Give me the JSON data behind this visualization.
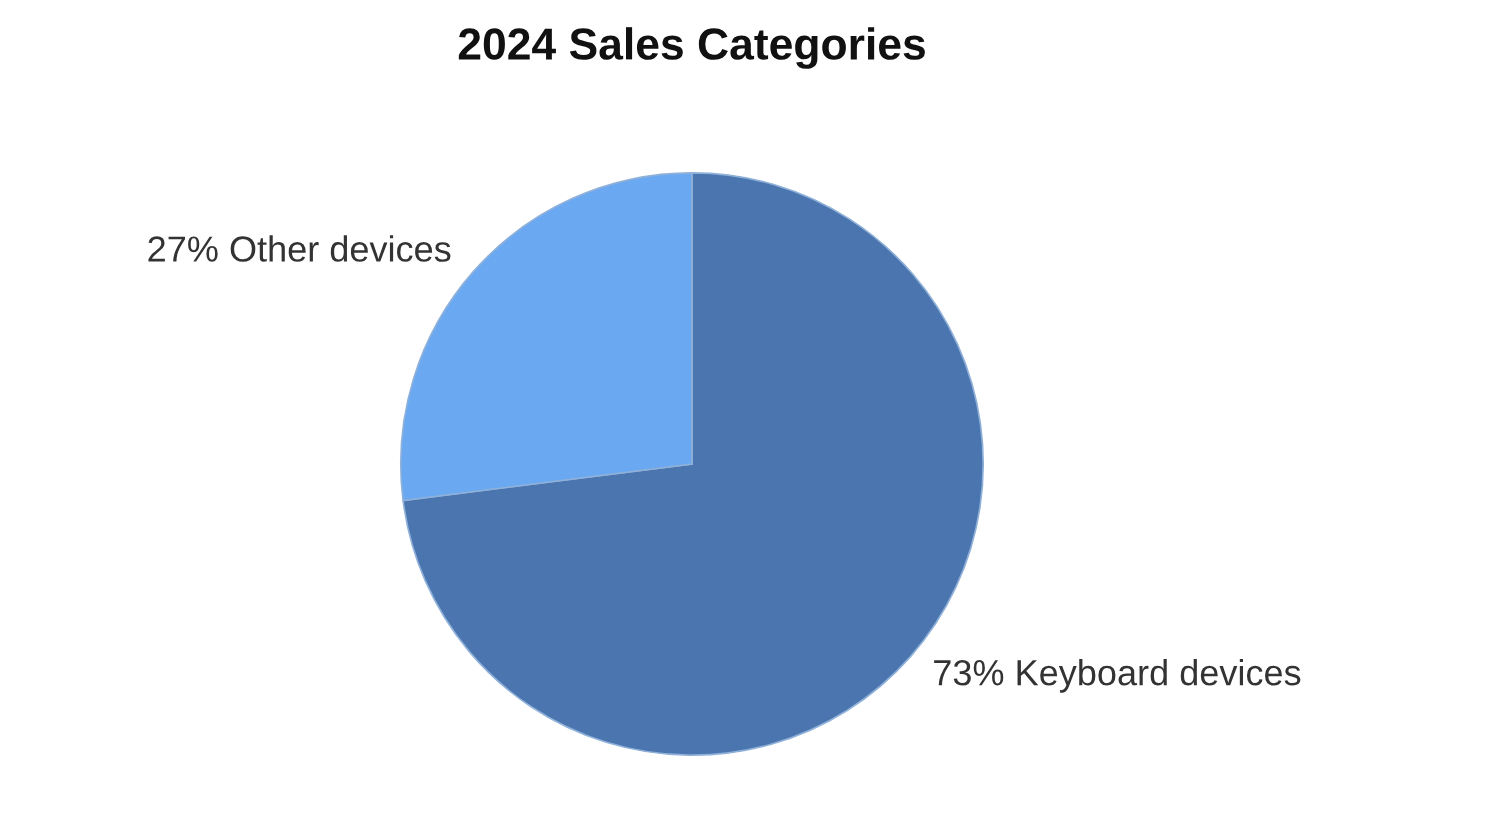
{
  "chart_data": {
    "type": "pie",
    "title": "2024 Sales Categories",
    "categories": [
      "Keyboard devices",
      "Other devices"
    ],
    "values": [
      73,
      27
    ],
    "colors": [
      "#4a75ae",
      "#6aa9f1"
    ],
    "value_labels": [
      "73%",
      "27%"
    ]
  }
}
